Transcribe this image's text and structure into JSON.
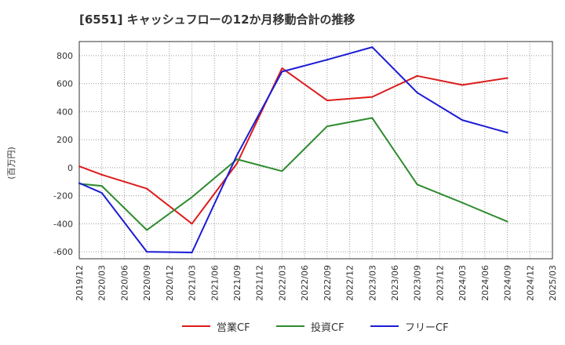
{
  "chart_data": {
    "type": "line",
    "title": "[6551]  キャッシュフローの12か月移動合計の推移",
    "ylabel": "(百万円)",
    "xlabel": "",
    "ylim": [
      -650,
      900
    ],
    "yticks": [
      800,
      600,
      400,
      200,
      0,
      -200,
      -400,
      -600
    ],
    "categories": [
      "2019/12",
      "2020/03",
      "2020/06",
      "2020/09",
      "2020/12",
      "2021/03",
      "2021/06",
      "2021/09",
      "2021/12",
      "2022/03",
      "2022/06",
      "2022/09",
      "2022/12",
      "2023/03",
      "2023/06",
      "2023/09",
      "2023/12",
      "2024/03",
      "2024/06",
      "2024/09",
      "2024/12",
      "2025/03"
    ],
    "grid": true,
    "legend_position": "bottom",
    "series": [
      {
        "name": "営業CF",
        "color": "#dd1c1c",
        "values": [
          10,
          -50,
          null,
          -150,
          null,
          -400,
          null,
          30,
          null,
          710,
          null,
          480,
          null,
          505,
          null,
          655,
          null,
          590,
          null,
          640,
          null,
          null
        ]
      },
      {
        "name": "投資CF",
        "color": "#2e8b2e",
        "values": [
          -115,
          -130,
          null,
          -445,
          null,
          -210,
          null,
          60,
          null,
          -25,
          null,
          295,
          null,
          355,
          null,
          -120,
          null,
          -250,
          null,
          -385,
          null,
          null
        ]
      },
      {
        "name": "フリーCF",
        "color": "#1c1cd6",
        "values": [
          -110,
          -180,
          null,
          -600,
          null,
          -605,
          null,
          90,
          null,
          685,
          null,
          770,
          null,
          860,
          null,
          535,
          null,
          340,
          null,
          250,
          null,
          null
        ]
      }
    ]
  }
}
